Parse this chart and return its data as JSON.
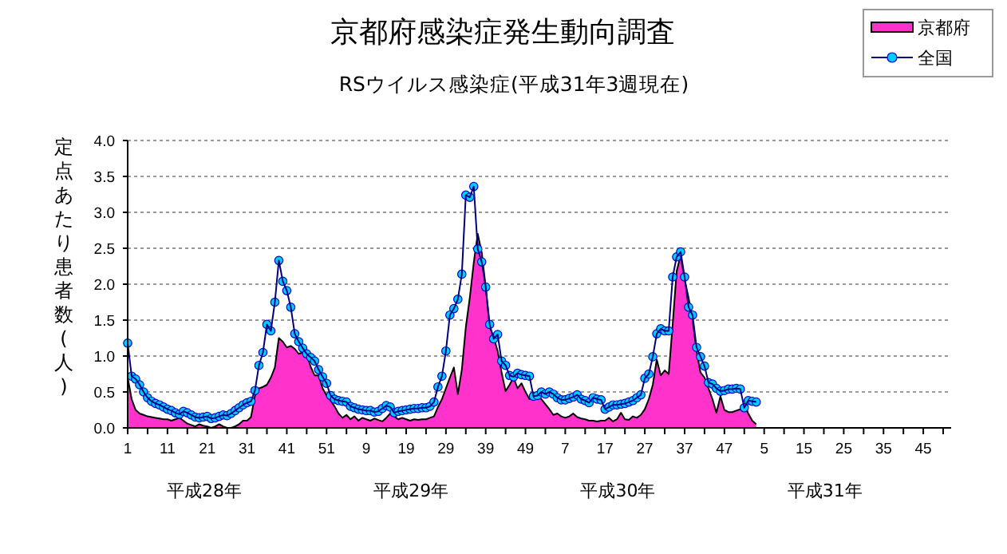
{
  "chart_data": {
    "type": "area",
    "title": "京都府感染症発生動向調査",
    "subtitle": "RSウイルス感染症(平成31年3週現在)",
    "ylabel": "定点あたり患者数(人)",
    "categories": [
      "1",
      null,
      null,
      null,
      null,
      null,
      null,
      null,
      null,
      null,
      "11",
      null,
      null,
      null,
      null,
      null,
      null,
      null,
      null,
      null,
      "21",
      null,
      null,
      null,
      null,
      null,
      null,
      null,
      null,
      null,
      "31",
      null,
      null,
      null,
      null,
      null,
      null,
      null,
      null,
      null,
      "41",
      null,
      null,
      null,
      null,
      null,
      null,
      null,
      null,
      null,
      "51",
      null,
      null,
      null,
      null,
      null,
      null,
      null,
      null,
      null,
      "9",
      null,
      null,
      null,
      null,
      null,
      null,
      null,
      null,
      null,
      "19",
      null,
      null,
      null,
      null,
      null,
      null,
      null,
      null,
      null,
      "29",
      null,
      null,
      null,
      null,
      null,
      null,
      null,
      null,
      null,
      "39",
      null,
      null,
      null,
      null,
      null,
      null,
      null,
      null,
      null,
      "49",
      null,
      null,
      null,
      null,
      null,
      null,
      null,
      null,
      null,
      "7",
      null,
      null,
      null,
      null,
      null,
      null,
      null,
      null,
      null,
      "17",
      null,
      null,
      null,
      null,
      null,
      null,
      null,
      null,
      null,
      "27",
      null,
      null,
      null,
      null,
      null,
      null,
      null,
      null,
      null,
      "37",
      null,
      null,
      null,
      null,
      null,
      null,
      null,
      null,
      null,
      "47",
      null,
      null,
      null,
      null,
      null,
      null,
      null,
      null,
      null,
      "5",
      null,
      null,
      null,
      null,
      null,
      null,
      null,
      null,
      null,
      "15",
      null,
      null,
      null,
      null,
      null,
      null,
      null,
      null,
      null,
      "25",
      null,
      null,
      null,
      null,
      null,
      null,
      null,
      null,
      null,
      "35",
      null,
      null,
      null,
      null,
      null,
      null,
      null,
      null,
      null,
      "45",
      null,
      null,
      null,
      null,
      null,
      null,
      null
    ],
    "series": [
      {
        "name": "京都府",
        "color": "#ff33cc",
        "values": [
          0.7,
          0.4,
          0.25,
          0.2,
          0.18,
          0.16,
          0.15,
          0.14,
          0.13,
          0.12,
          0.12,
          0.1,
          0.12,
          0.14,
          0.1,
          0.06,
          0.04,
          0.02,
          0.05,
          0.03,
          0.02,
          0.0,
          0.02,
          0.05,
          0.02,
          0.0,
          0.0,
          0.02,
          0.05,
          0.1,
          0.1,
          0.15,
          0.45,
          0.55,
          0.57,
          0.6,
          0.7,
          0.84,
          1.25,
          1.2,
          1.12,
          1.14,
          1.1,
          1.03,
          1.05,
          1.03,
          0.85,
          0.73,
          0.73,
          0.55,
          0.45,
          0.38,
          0.3,
          0.2,
          0.14,
          0.18,
          0.12,
          0.16,
          0.1,
          0.14,
          0.12,
          0.1,
          0.13,
          0.11,
          0.09,
          0.14,
          0.2,
          0.16,
          0.12,
          0.14,
          0.12,
          0.1,
          0.12,
          0.11,
          0.12,
          0.12,
          0.14,
          0.16,
          0.29,
          0.4,
          0.55,
          0.7,
          0.84,
          0.47,
          0.81,
          1.4,
          1.81,
          2.3,
          2.7,
          2.44,
          1.96,
          1.4,
          1.26,
          1.07,
          0.77,
          0.51,
          0.6,
          0.7,
          0.55,
          0.62,
          0.5,
          0.4,
          0.47,
          0.45,
          0.4,
          0.33,
          0.26,
          0.18,
          0.2,
          0.16,
          0.14,
          0.16,
          0.2,
          0.15,
          0.13,
          0.12,
          0.1,
          0.1,
          0.09,
          0.1,
          0.1,
          0.14,
          0.09,
          0.12,
          0.21,
          0.12,
          0.11,
          0.16,
          0.14,
          0.18,
          0.26,
          0.4,
          0.6,
          0.95,
          0.73,
          0.8,
          0.75,
          1.44,
          2.18,
          2.4,
          2.07,
          1.81,
          1.51,
          1.07,
          0.77,
          0.7,
          0.55,
          0.4,
          0.21,
          0.44,
          0.25,
          0.22,
          0.22,
          0.24,
          0.26,
          0.33,
          0.2,
          0.1,
          0.05,
          null,
          null,
          null,
          null,
          null,
          null,
          null,
          null,
          null,
          null,
          null,
          null,
          null,
          null,
          null,
          null,
          null,
          null,
          null,
          null,
          null,
          null,
          null,
          null,
          null,
          null,
          null,
          null,
          null,
          null,
          null,
          null,
          null,
          null,
          null,
          null,
          null,
          null,
          null,
          null,
          null,
          null,
          null,
          null,
          null,
          null,
          null,
          null,
          null
        ]
      },
      {
        "name": "全国",
        "type": "line",
        "color": "#00ccff",
        "marker": "circle",
        "values": [
          1.18,
          0.72,
          0.68,
          0.6,
          0.5,
          0.42,
          0.37,
          0.34,
          0.32,
          0.29,
          0.26,
          0.24,
          0.21,
          0.19,
          0.23,
          0.21,
          0.18,
          0.15,
          0.14,
          0.15,
          0.16,
          0.13,
          0.14,
          0.16,
          0.18,
          0.17,
          0.2,
          0.24,
          0.28,
          0.32,
          0.35,
          0.37,
          0.52,
          0.87,
          1.05,
          1.44,
          1.35,
          1.75,
          2.33,
          2.04,
          1.91,
          1.68,
          1.31,
          1.2,
          1.11,
          1.03,
          0.98,
          0.93,
          0.81,
          0.71,
          0.62,
          0.45,
          0.4,
          0.38,
          0.37,
          0.36,
          0.3,
          0.28,
          0.26,
          0.25,
          0.24,
          0.24,
          0.22,
          0.23,
          0.27,
          0.31,
          0.29,
          0.21,
          0.23,
          0.24,
          0.25,
          0.26,
          0.27,
          0.27,
          0.28,
          0.28,
          0.3,
          0.36,
          0.57,
          0.72,
          1.07,
          1.57,
          1.66,
          1.79,
          2.14,
          3.24,
          3.21,
          3.36,
          2.49,
          2.31,
          1.96,
          1.44,
          1.24,
          1.3,
          0.93,
          0.87,
          0.73,
          0.71,
          0.76,
          0.74,
          0.73,
          0.72,
          0.44,
          0.45,
          0.5,
          0.47,
          0.5,
          0.47,
          0.42,
          0.39,
          0.39,
          0.41,
          0.43,
          0.46,
          0.4,
          0.38,
          0.35,
          0.42,
          0.4,
          0.39,
          0.26,
          0.29,
          0.32,
          0.32,
          0.33,
          0.34,
          0.36,
          0.38,
          0.42,
          0.46,
          0.69,
          0.75,
          0.99,
          1.31,
          1.38,
          1.35,
          1.35,
          2.1,
          2.38,
          2.45,
          2.1,
          1.68,
          1.57,
          1.12,
          0.99,
          0.86,
          0.63,
          0.61,
          0.55,
          0.51,
          0.52,
          0.54,
          0.54,
          0.55,
          0.54,
          0.28,
          0.38,
          0.37,
          0.36,
          null,
          null,
          null,
          null,
          null,
          null,
          null,
          null,
          null,
          null,
          null,
          null,
          null,
          null,
          null,
          null,
          null,
          null,
          null,
          null,
          null,
          null,
          null,
          null,
          null,
          null,
          null,
          null,
          null,
          null,
          null,
          null,
          null,
          null,
          null,
          null,
          null,
          null,
          null,
          null,
          null,
          null,
          null,
          null,
          null,
          null,
          null,
          null,
          null
        ]
      }
    ],
    "ylim": [
      0,
      4
    ],
    "yticks": [
      {
        "value": 0,
        "label": "0.0"
      },
      {
        "value": 0.5,
        "label": "0.5"
      },
      {
        "value": 1,
        "label": "1.0"
      },
      {
        "value": 1.5,
        "label": "1.5"
      },
      {
        "value": 2,
        "label": "2.0"
      },
      {
        "value": 2.5,
        "label": "2.5"
      },
      {
        "value": 3,
        "label": "3.0"
      },
      {
        "value": 3.5,
        "label": "3.5"
      },
      {
        "value": 4,
        "label": "4.0"
      }
    ],
    "grid": "y",
    "legend": "top right",
    "annotations": [
      "平成28年",
      "平成29年",
      "平成30年",
      "平成31年"
    ]
  }
}
